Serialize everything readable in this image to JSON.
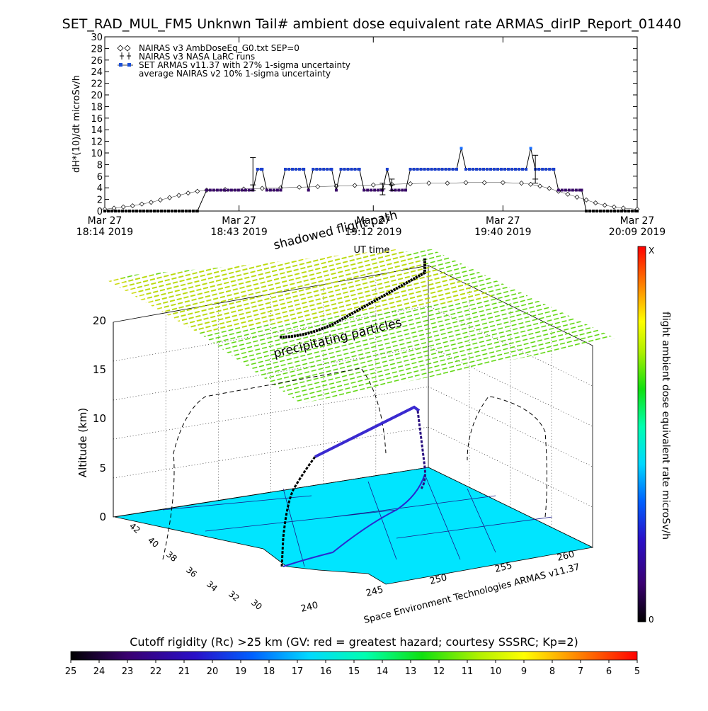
{
  "title": "SET_RAD_MUL_FM5 Unknwn Tail#  ambient dose equivalent rate ARMAS_dirIP_Report_01440",
  "chart_data": [
    {
      "type": "line",
      "ylabel": "dH*(10)/dt microSv/h",
      "xlabel": "UT time",
      "ylim": [
        0,
        30
      ],
      "yticks": [
        0,
        2,
        4,
        6,
        8,
        10,
        12,
        14,
        16,
        18,
        20,
        22,
        24,
        26,
        28,
        30
      ],
      "xrange": [
        "18:14",
        "20:09"
      ],
      "xticks": [
        {
          "time": "18:14",
          "date": "Mar 27",
          "label": "18:14 2019"
        },
        {
          "time": "18:43",
          "date": "Mar 27",
          "label": "18:43 2019"
        },
        {
          "time": "19:12",
          "date": "Mar 27",
          "label": "19:12 2019"
        },
        {
          "time": "19:40",
          "date": "Mar 27",
          "label": "19:40 2019"
        },
        {
          "time": "20:09",
          "date": "Mar 27",
          "label": "20:09 2019"
        }
      ],
      "legend_position": "top-left",
      "legend": [
        {
          "symbol": "diamond",
          "label": "NAIRAS v3 AmbDoseEq_G0.txt SEP=0"
        },
        {
          "symbol": "errorbar",
          "label": "NAIRAS v3 NASA LaRC runs"
        },
        {
          "symbol": "blue-square",
          "label": "SET ARMAS v11.37 with 27% 1-sigma uncertainty"
        },
        {
          "symbol": "none",
          "label": "average NAIRAS v2 10% 1-sigma uncertainty"
        }
      ],
      "series": [
        {
          "name": "NAIRAS v3 AmbDoseEq_G0.txt SEP=0",
          "style": "diamond",
          "points": [
            [
              "18:14",
              0.3
            ],
            [
              "18:16",
              0.5
            ],
            [
              "18:18",
              0.7
            ],
            [
              "18:20",
              0.9
            ],
            [
              "18:22",
              1.2
            ],
            [
              "18:24",
              1.5
            ],
            [
              "18:26",
              1.9
            ],
            [
              "18:28",
              2.3
            ],
            [
              "18:30",
              2.7
            ],
            [
              "18:32",
              3.1
            ],
            [
              "18:34",
              3.4
            ],
            [
              "18:36",
              3.6
            ],
            [
              "18:40",
              3.7
            ],
            [
              "18:44",
              3.8
            ],
            [
              "18:48",
              3.9
            ],
            [
              "18:52",
              4.0
            ],
            [
              "18:56",
              4.1
            ],
            [
              "19:00",
              4.2
            ],
            [
              "19:04",
              4.3
            ],
            [
              "19:08",
              4.4
            ],
            [
              "19:12",
              4.5
            ],
            [
              "19:16",
              4.6
            ],
            [
              "19:20",
              4.7
            ],
            [
              "19:24",
              4.8
            ],
            [
              "19:28",
              4.8
            ],
            [
              "19:32",
              4.9
            ],
            [
              "19:36",
              4.9
            ],
            [
              "19:40",
              4.9
            ],
            [
              "19:44",
              4.8
            ],
            [
              "19:46",
              4.6
            ],
            [
              "19:48",
              4.3
            ],
            [
              "19:50",
              3.9
            ],
            [
              "19:52",
              3.4
            ],
            [
              "19:54",
              2.9
            ],
            [
              "19:56",
              2.4
            ],
            [
              "19:58",
              1.9
            ],
            [
              "20:00",
              1.4
            ],
            [
              "20:02",
              1.0
            ],
            [
              "20:04",
              0.7
            ],
            [
              "20:06",
              0.5
            ],
            [
              "20:09",
              0.3
            ]
          ]
        },
        {
          "name": "SET ARMAS v11.37",
          "style": "line-points",
          "points": [
            [
              "18:14",
              0
            ],
            [
              "18:34",
              0
            ],
            [
              "18:36",
              3.6
            ],
            [
              "18:46",
              3.6
            ],
            [
              "18:47",
              7.2
            ],
            [
              "18:48",
              7.2
            ],
            [
              "18:49",
              3.6
            ],
            [
              "18:52",
              3.6
            ],
            [
              "18:53",
              7.2
            ],
            [
              "18:57",
              7.2
            ],
            [
              "18:58",
              3.6
            ],
            [
              "18:59",
              7.2
            ],
            [
              "19:03",
              7.2
            ],
            [
              "19:04",
              3.6
            ],
            [
              "19:05",
              7.2
            ],
            [
              "19:09",
              7.2
            ],
            [
              "19:10",
              3.6
            ],
            [
              "19:14",
              3.6
            ],
            [
              "19:15",
              7.2
            ],
            [
              "19:16",
              3.6
            ],
            [
              "19:19",
              3.6
            ],
            [
              "19:20",
              7.2
            ],
            [
              "19:30",
              7.2
            ],
            [
              "19:31",
              10.8
            ],
            [
              "19:32",
              7.2
            ],
            [
              "19:45",
              7.2
            ],
            [
              "19:46",
              10.8
            ],
            [
              "19:47",
              7.2
            ],
            [
              "19:51",
              7.2
            ],
            [
              "19:52",
              3.6
            ],
            [
              "19:57",
              3.6
            ],
            [
              "19:58",
              0
            ],
            [
              "20:09",
              0
            ]
          ]
        },
        {
          "name": "NAIRAS v3 NASA LaRC runs",
          "style": "errorbar",
          "points": [
            {
              "x": "18:46",
              "y": 4.5,
              "lo": 3.5,
              "hi": 9.2
            },
            {
              "x": "19:14",
              "y": 3.8,
              "lo": 2.8,
              "hi": 4.8
            },
            {
              "x": "19:16",
              "y": 4.5,
              "lo": 3.5,
              "hi": 5.5
            },
            {
              "x": "19:47",
              "y": 5.5,
              "lo": 4.8,
              "hi": 9.6
            }
          ]
        }
      ]
    },
    {
      "type": "scatter",
      "chart_kind": "3d-flight-path",
      "zlabel": "Altitude (km)",
      "zticks": [
        "0",
        "5",
        "10",
        "15",
        "20"
      ],
      "lat_ticks": [
        "42",
        "40",
        "38",
        "36",
        "34",
        "32",
        "30"
      ],
      "lon_ticks": [
        "240",
        "245",
        "250",
        "255",
        "260"
      ],
      "annotations": [
        "shadowed flight path",
        "precipitating particles"
      ],
      "footer": "Space Environment Technologies ARMAS v11.37",
      "colorbar_label": "flight ambient dose equivalent rate microSv/h",
      "colorbar_max": "X",
      "colorbar_min": "0"
    },
    {
      "type": "heatmap",
      "chart_kind": "colorbar",
      "title": "Cutoff rigidity (Rc) >25 km (GV: red = greatest hazard; courtesy SSSRC; Kp=2)",
      "ticks": [
        "25",
        "24",
        "23",
        "22",
        "21",
        "20",
        "19",
        "18",
        "17",
        "16",
        "15",
        "14",
        "13",
        "12",
        "11",
        "10",
        "9",
        "8",
        "7",
        "6",
        "5"
      ]
    }
  ]
}
